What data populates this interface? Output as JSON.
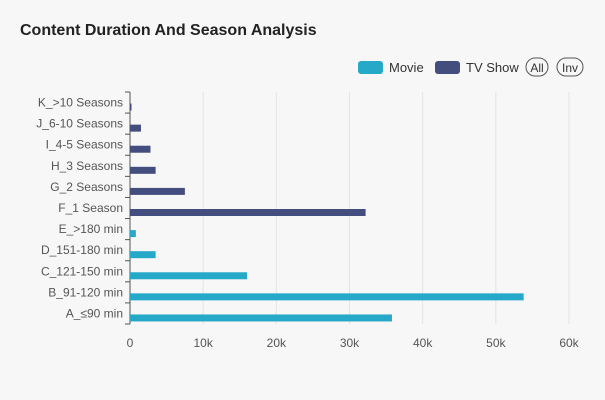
{
  "chart_data": {
    "type": "bar",
    "orientation": "horizontal",
    "title": "Content Duration And Season Analysis",
    "categories": [
      "A_≤90 min",
      "B_91-120 min",
      "C_121-150 min",
      "D_151-180 min",
      "E_>180 min",
      "F_1 Season",
      "G_2 Seasons",
      "H_3 Seasons",
      "I_4-5 Seasons",
      "J_6-10 Seasons",
      "K_>10 Seasons"
    ],
    "series": [
      {
        "name": "Movie",
        "color": "#26a8c8",
        "values": [
          35800,
          53800,
          16000,
          3500,
          800,
          0,
          0,
          0,
          0,
          0,
          0
        ]
      },
      {
        "name": "TV Show",
        "color": "#434e7e",
        "values": [
          0,
          0,
          0,
          0,
          0,
          32200,
          7500,
          3500,
          2800,
          1500,
          150
        ]
      }
    ],
    "xlim": [
      0,
      60000
    ],
    "x_ticks": [
      0,
      10000,
      20000,
      30000,
      40000,
      50000,
      60000
    ],
    "x_tick_labels": [
      "0",
      "10k",
      "20k",
      "30k",
      "40k",
      "50k",
      "60k"
    ],
    "grid": true,
    "legend_position": "top-right"
  },
  "controls": {
    "all_label": "All",
    "inv_label": "Inv"
  }
}
